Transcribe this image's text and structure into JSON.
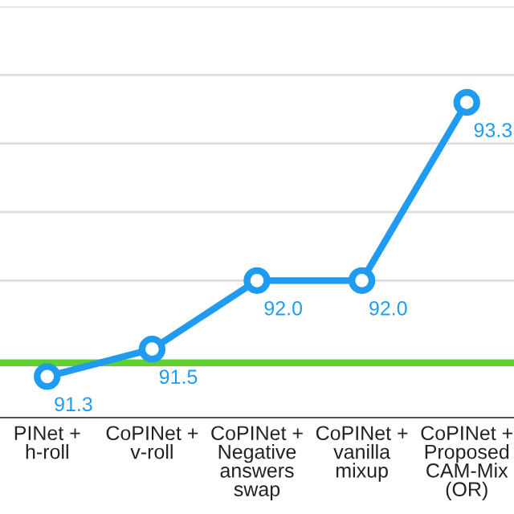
{
  "chart_data": {
    "type": "line",
    "categories": [
      "PINet +\nh-roll",
      "CoPINet +\nv-roll",
      "CoPINet +\nNegative\nanswers\nswap",
      "CoPINet +\nvanilla\nmixup",
      "CoPINet +\nProposed\nCAM-Mix\n(OR)"
    ],
    "series": [
      {
        "color": "#1f9bf0",
        "values": [
          91.3,
          91.5,
          92.0,
          92.0,
          93.3
        ],
        "value_labels": [
          "91.3",
          "91.5",
          "92.0",
          "92.0",
          "93.3"
        ]
      }
    ],
    "marker": "circle",
    "ylim": [
      91.0,
      94.0
    ],
    "yticks": [
      {
        "value": 92.0,
        "label": null
      },
      {
        "value": 92.5,
        "label": null
      },
      {
        "value": 93.0,
        "label": null
      },
      {
        "value": 93.5,
        "label": null
      },
      {
        "value": 94.0,
        "label": null
      }
    ],
    "grid": "y",
    "tick_labels": "x",
    "ref_lines": [
      {
        "axis": "y",
        "value": 91.4,
        "label": null,
        "color": "#5fd02c"
      }
    ]
  }
}
